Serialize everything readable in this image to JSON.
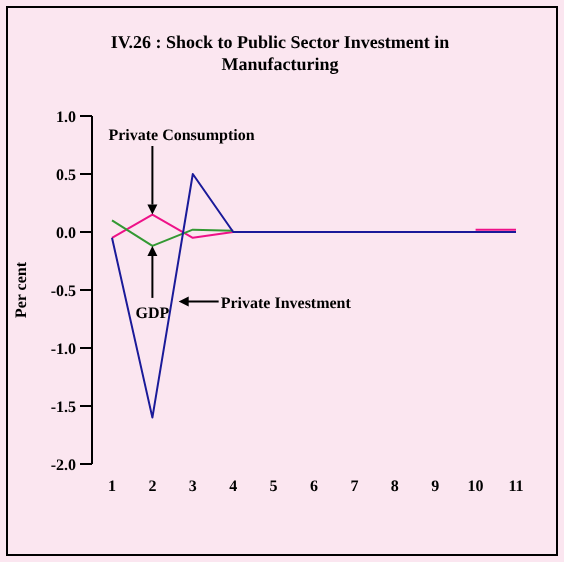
{
  "chart_data": {
    "type": "line",
    "title": "IV.26 : Shock to Public Sector Investment in Manufacturing",
    "ylabel": "Per cent",
    "categories": [
      "1",
      "2",
      "3",
      "4",
      "5",
      "6",
      "7",
      "8",
      "9",
      "10",
      "11"
    ],
    "series": [
      {
        "color": "#ee1188",
        "values": [
          -0.05,
          0.15,
          -0.05,
          0,
          null,
          null,
          null,
          null,
          null,
          0.02,
          0.02
        ]
      },
      {
        "color": "#339933",
        "values": [
          0.1,
          -0.12,
          0.02,
          0.01,
          null,
          null,
          null,
          null,
          null,
          null,
          null
        ]
      },
      {
        "color": "#1a1a99",
        "values": [
          -0.05,
          -1.6,
          0.5,
          0,
          0,
          0,
          0,
          0,
          0,
          0,
          0
        ]
      }
    ],
    "ylim": [
      -2.0,
      1.0
    ],
    "yticks": [
      {
        "value": -2,
        "label": "-2.0"
      },
      {
        "value": -1.5,
        "label": "-1.5"
      },
      {
        "value": -1,
        "label": "-1.0"
      },
      {
        "value": -0.5,
        "label": "-0.5"
      },
      {
        "value": 0,
        "label": "0.0"
      },
      {
        "value": 0.5,
        "label": "0.5"
      },
      {
        "value": 1,
        "label": "1.0"
      }
    ],
    "annotations": [
      {
        "text": "Private Consumption",
        "x": "2",
        "y": 0.15
      },
      {
        "text": "GDP",
        "x": "2",
        "y": -0.12
      },
      "Private Investment"
    ],
    "grid": false,
    "marker": "none",
    "line_style": "solid"
  }
}
